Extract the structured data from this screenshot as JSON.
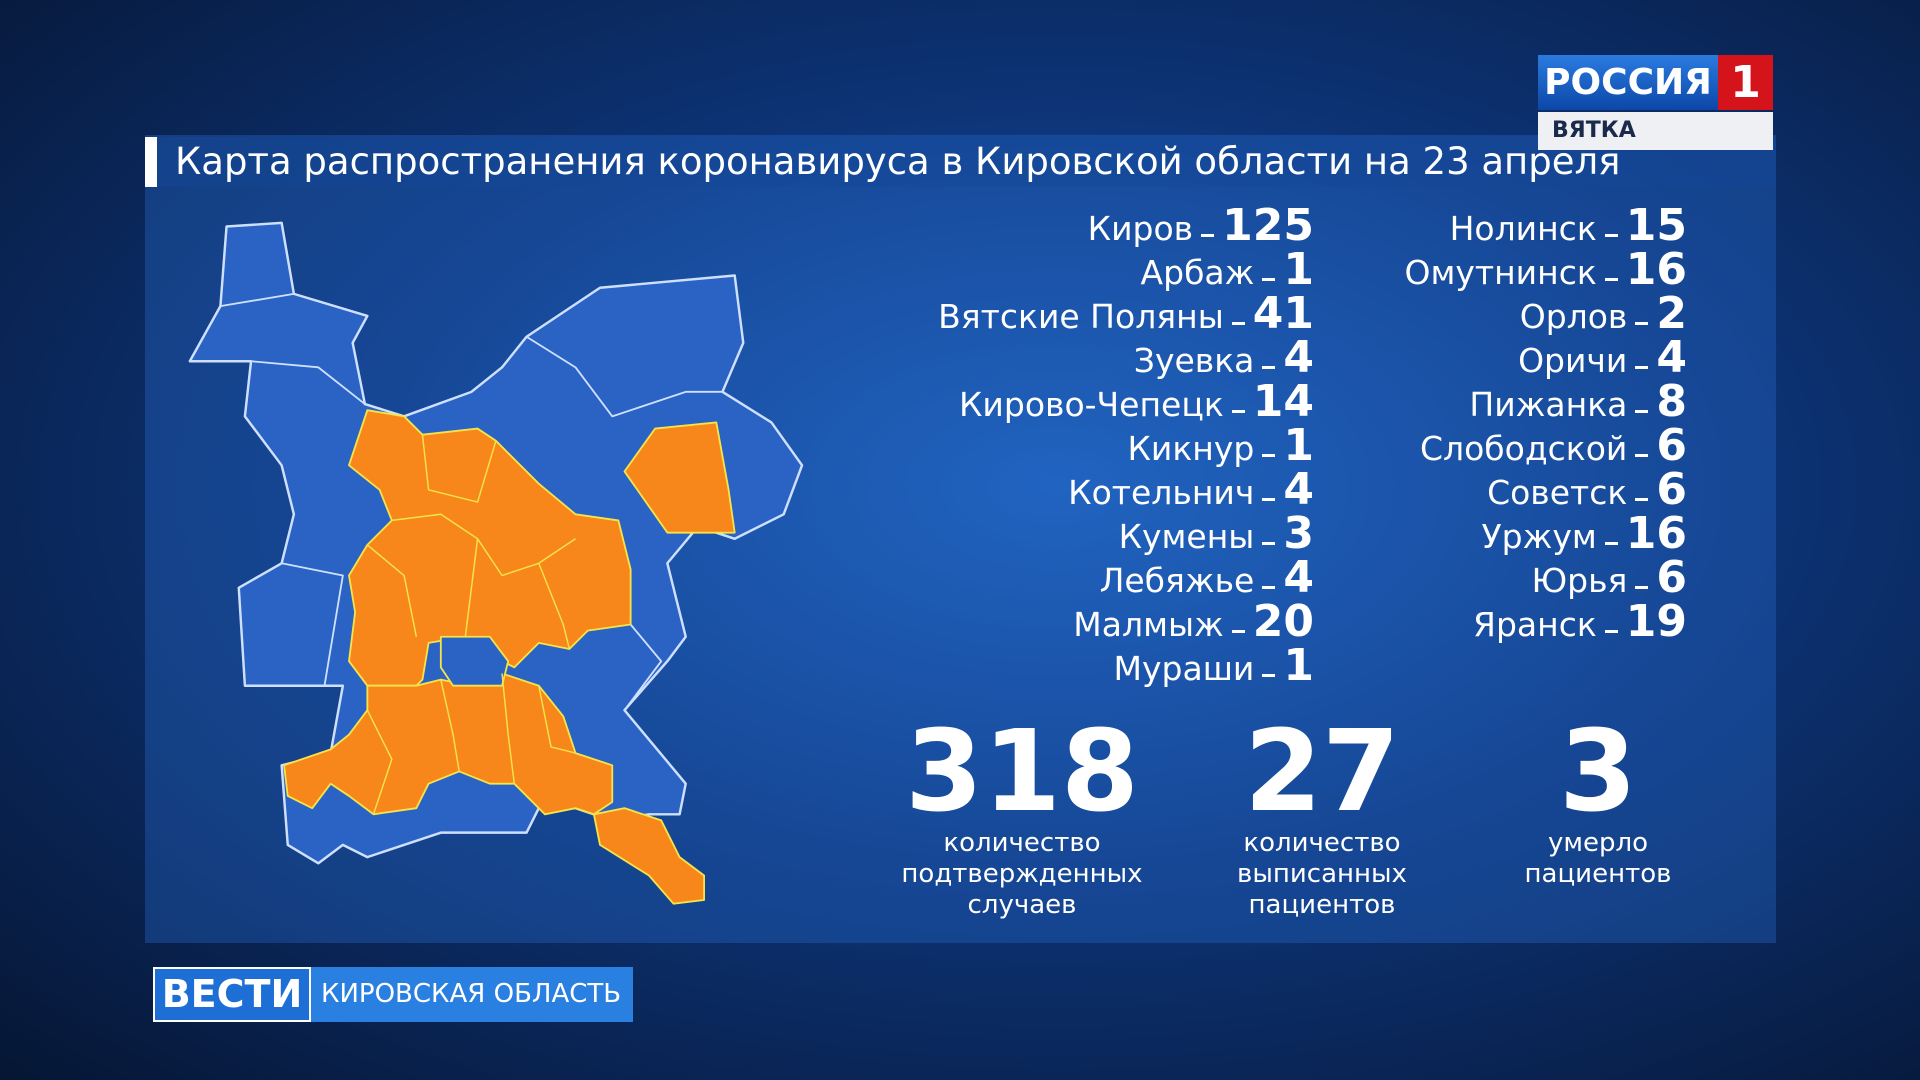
{
  "header": {
    "channel": "РОССИЯ",
    "channel_number": "1",
    "region": "ВЯТКА"
  },
  "title": "Карта распространения коронавируса в Кировской области на 23 апреля",
  "districts": [
    {
      "name": "Киров",
      "count": 125
    },
    {
      "name": "Арбаж",
      "count": 1
    },
    {
      "name": "Вятские Поляны",
      "count": 41
    },
    {
      "name": "Зуевка",
      "count": 4
    },
    {
      "name": "Кирово-Чепецк",
      "count": 14
    },
    {
      "name": "Кикнур",
      "count": 1
    },
    {
      "name": "Котельнич",
      "count": 4
    },
    {
      "name": "Кумены",
      "count": 3
    },
    {
      "name": "Лебяжье",
      "count": 4
    },
    {
      "name": "Малмыж",
      "count": 20
    },
    {
      "name": "Мураши",
      "count": 1
    },
    {
      "name": "Нолинск",
      "count": 15
    },
    {
      "name": "Омутнинск",
      "count": 16
    },
    {
      "name": "Орлов",
      "count": 2
    },
    {
      "name": "Оричи",
      "count": 4
    },
    {
      "name": "Пижанка",
      "count": 8
    },
    {
      "name": "Слободской",
      "count": 6
    },
    {
      "name": "Советск",
      "count": 6
    },
    {
      "name": "Уржум",
      "count": 16
    },
    {
      "name": "Юрья",
      "count": 6
    },
    {
      "name": "Яранск",
      "count": 19
    }
  ],
  "totals": [
    {
      "value": 318,
      "label": [
        "количество",
        "подтвержденных",
        "случаев"
      ]
    },
    {
      "value": 27,
      "label": [
        "количество",
        "выписанных",
        "пациентов"
      ]
    },
    {
      "value": 3,
      "label": [
        "умерло",
        "пациентов"
      ]
    }
  ],
  "footer": {
    "program": "ВЕСТИ",
    "region": "КИРОВСКАЯ ОБЛАСТЬ"
  }
}
